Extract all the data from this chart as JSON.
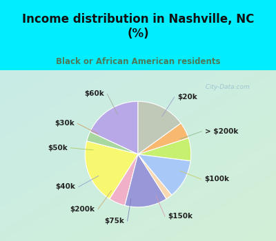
{
  "title": "Income distribution in Nashville, NC\n(%)",
  "subtitle": "Black or African American residents",
  "labels": [
    "$20k",
    "> $200k",
    "$100k",
    "$150k",
    "$75k",
    "$200k",
    "$40k",
    "$50k",
    "$30k",
    "$60k"
  ],
  "values": [
    18,
    3,
    20,
    5,
    13,
    2,
    12,
    7,
    5,
    15
  ],
  "colors": [
    "#b8a8e8",
    "#a8d8a0",
    "#f8f870",
    "#f0b0c8",
    "#9898d8",
    "#f8d8b0",
    "#a8c8f8",
    "#c8f070",
    "#f8b870",
    "#c0c8b8"
  ],
  "bg_color_top": "#00eeff",
  "bg_color_chart_tl": "#c8f0e8",
  "bg_color_chart_br": "#d8f0d8",
  "title_color": "#111111",
  "subtitle_color": "#4a7a5a",
  "watermark": "  City-Data.com",
  "startangle": 90,
  "label_fontsize": 7.5,
  "title_fontsize": 12
}
